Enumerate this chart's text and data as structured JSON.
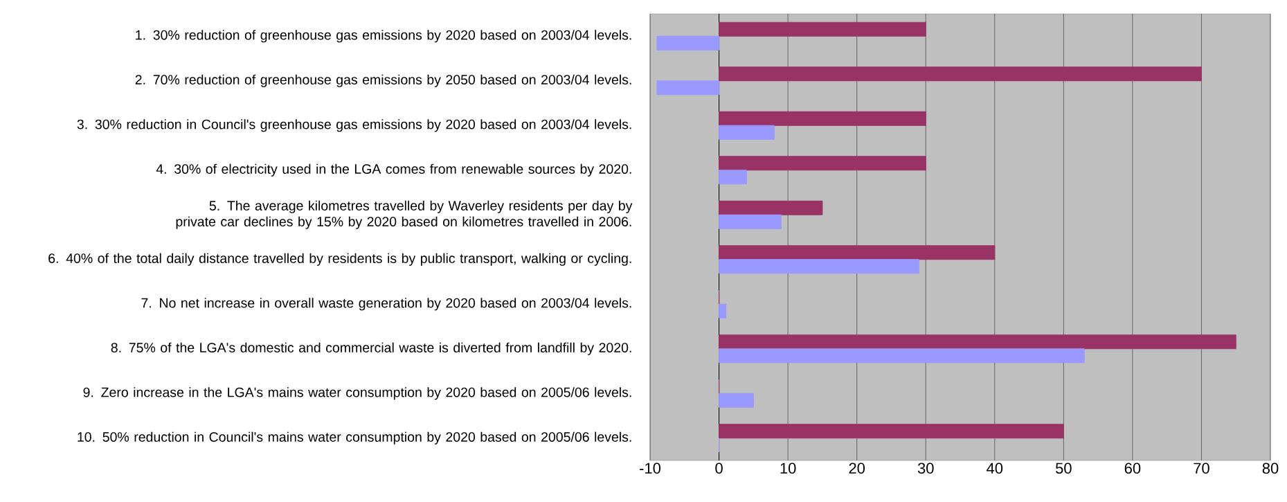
{
  "chart_data": {
    "type": "bar",
    "orientation": "horizontal",
    "categories": [
      "1.   30% reduction of greenhouse gas emissions by 2020 based on 2003/04 levels.",
      "2.   70% reduction of greenhouse gas emissions by 2050 based on 2003/04 levels.",
      "3.   30% reduction in Council's greenhouse gas emissions by 2020 based on 2003/04 levels.",
      "4.   30% of electricity used in the LGA comes from renewable sources by 2020.",
      "5.   The average kilometres travelled by Waverley residents per day by private car declines by 15% by 2020 based on kilometres travelled in 2006.",
      "6.   40% of the total daily distance travelled by residents is by public transport, walking or cycling.",
      "7.   No net increase in overall waste generation by 2020 based on 2003/04 levels.",
      "8.   75% of the LGA's domestic and commercial waste is diverted from landfill by 2020.",
      "9.   Zero increase in the LGA's mains water consumption by 2020 based on 2005/06 levels.",
      "10.  50% reduction in Council's mains water consumption by 2020 based on 2005/06 levels."
    ],
    "series": [
      {
        "color": "#993366",
        "values": [
          30,
          70,
          30,
          30,
          15,
          40,
          0,
          75,
          0,
          50
        ]
      },
      {
        "color": "#9999ff",
        "values": [
          -9,
          -9,
          8,
          4,
          9,
          29,
          1,
          53,
          5,
          0
        ]
      }
    ],
    "xlim": [
      -10,
      80
    ],
    "xticks": [
      -10,
      0,
      10,
      20,
      30,
      40,
      50,
      60,
      70,
      80
    ],
    "grid": "x"
  }
}
